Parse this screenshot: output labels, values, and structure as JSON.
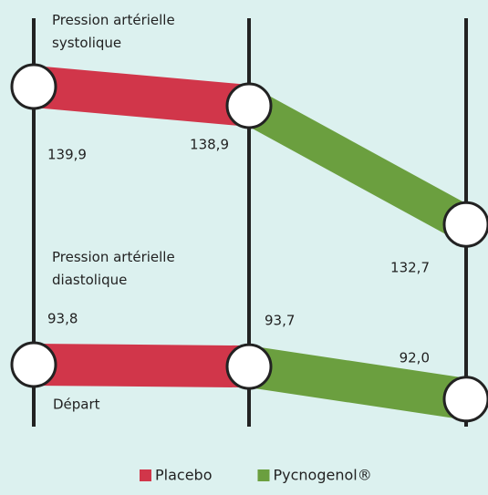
{
  "chart_data": {
    "type": "slope",
    "baseline_label": "Départ",
    "legend": [
      {
        "name": "Placebo",
        "color": "#d1364a"
      },
      {
        "name": "Pycnogenol®",
        "color": "#6b9f3f"
      }
    ],
    "groups": [
      {
        "label": "Pression artérielle systolique",
        "values": [
          139.9,
          138.9,
          132.7
        ],
        "value_labels": [
          "139,9",
          "138,9",
          "132,7"
        ]
      },
      {
        "label": "Pression artérielle diastolique",
        "values": [
          93.8,
          93.7,
          92.0
        ],
        "value_labels": [
          "93,8",
          "93,7",
          "92,0"
        ]
      }
    ]
  }
}
